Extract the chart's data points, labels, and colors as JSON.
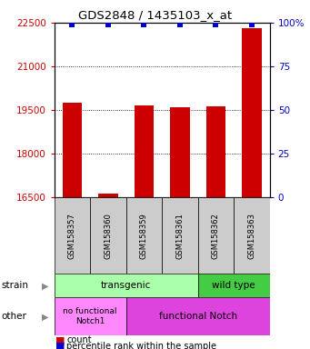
{
  "title": "GDS2848 / 1435103_x_at",
  "samples": [
    "GSM158357",
    "GSM158360",
    "GSM158359",
    "GSM158361",
    "GSM158362",
    "GSM158363"
  ],
  "counts": [
    19750,
    16620,
    19650,
    19580,
    19620,
    22300
  ],
  "percentiles": [
    99,
    99,
    99,
    99,
    99,
    99
  ],
  "ylim_left": [
    16500,
    22500
  ],
  "ylim_right": [
    0,
    100
  ],
  "yticks_left": [
    16500,
    18000,
    19500,
    21000,
    22500
  ],
  "yticks_right": [
    0,
    25,
    50,
    75,
    100
  ],
  "bar_color": "#cc0000",
  "dot_color": "#0000cc",
  "transgenic_color": "#aaffaa",
  "wildtype_color": "#44cc44",
  "nofunc_color": "#ff88ff",
  "func_color": "#dd44dd",
  "legend_count_color": "#cc0000",
  "legend_pct_color": "#0000cc",
  "tick_color_left": "#cc0000",
  "tick_color_right": "#0000cc",
  "bar_width": 0.55
}
